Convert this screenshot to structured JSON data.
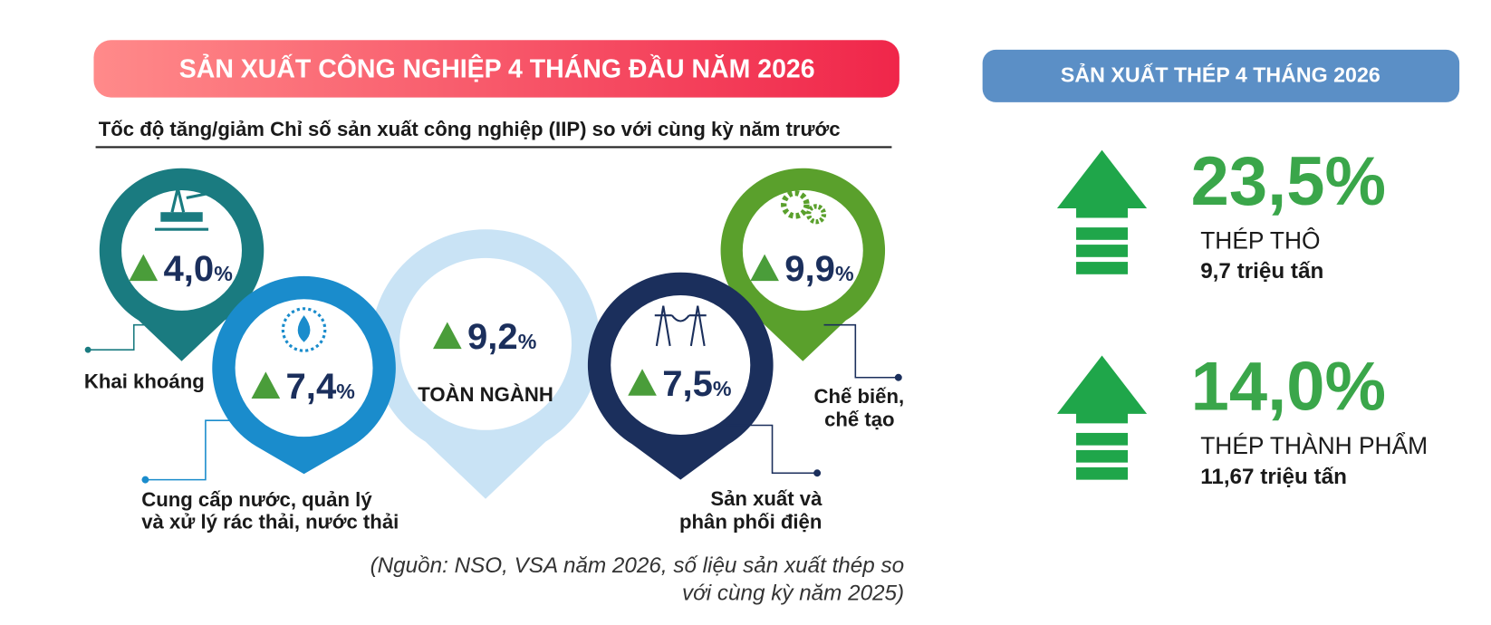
{
  "left": {
    "title": "SẢN XUẤT CÔNG NGHIỆP 4 THÁNG ĐẦU NĂM 2026",
    "subtitle": "Tốc độ tăng/giảm Chỉ số sản xuất công nghiệp (IIP) so với cùng kỳ năm trước",
    "pins": [
      {
        "value": "4,0",
        "unit": "%",
        "label": [
          "Khai khoáng"
        ]
      },
      {
        "value": "7,4",
        "unit": "%",
        "label": [
          "Cung cấp nước, quản lý",
          "và xử lý rác thải, nước thải"
        ]
      },
      {
        "value": "9,2",
        "unit": "%",
        "label": [
          "TOÀN NGÀNH"
        ]
      },
      {
        "value": "7,5",
        "unit": "%",
        "label": [
          "Sản xuất và",
          "phân phối điện"
        ]
      },
      {
        "value": "9,9",
        "unit": "%",
        "label": [
          "Chế biến,",
          "chế tạo"
        ]
      }
    ],
    "source": [
      "(Nguồn: NSO, VSA năm 2026, số liệu sản xuất thép so",
      "với cùng kỳ năm 2025)"
    ]
  },
  "right": {
    "title": "SẢN XUẤT THÉP 4 THÁNG 2026",
    "items": [
      {
        "percent": "23,5%",
        "name": "THÉP THÔ",
        "amount": "9,7 triệu tấn"
      },
      {
        "percent": "14,0%",
        "name": "THÉP THÀNH PHẨM",
        "amount": "11,67 triệu tấn"
      }
    ]
  }
}
